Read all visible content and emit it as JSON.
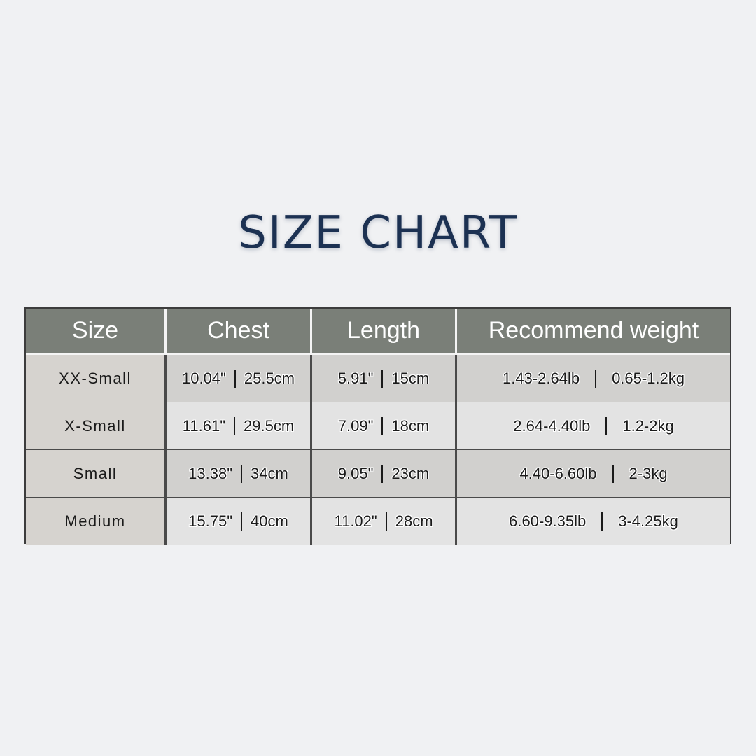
{
  "title": "SIZE CHART",
  "table": {
    "headers": [
      "Size",
      "Chest",
      "Length",
      "Recommend weight"
    ],
    "rows": [
      {
        "size": "XX-Small",
        "chest": [
          "10.04\"",
          "25.5cm"
        ],
        "length": [
          "5.91\"",
          "15cm"
        ],
        "weight": [
          "1.43-2.64lb",
          "0.65-1.2kg"
        ]
      },
      {
        "size": "X-Small",
        "chest": [
          "11.61\"",
          "29.5cm"
        ],
        "length": [
          "7.09\"",
          "18cm"
        ],
        "weight": [
          "2.64-4.40lb",
          "1.2-2kg"
        ]
      },
      {
        "size": "Small",
        "chest": [
          "13.38\"",
          "34cm"
        ],
        "length": [
          "9.05\"",
          "23cm"
        ],
        "weight": [
          "4.40-6.60lb",
          "2-3kg"
        ]
      },
      {
        "size": "Medium",
        "chest": [
          "15.75\"",
          "40cm"
        ],
        "length": [
          "11.02\"",
          "28cm"
        ],
        "weight": [
          "6.60-9.35lb",
          "3-4.25kg"
        ]
      }
    ]
  },
  "colors": {
    "title": "#1c3152",
    "header_bg": "#7a7f78",
    "background": "#f0f1f3"
  }
}
